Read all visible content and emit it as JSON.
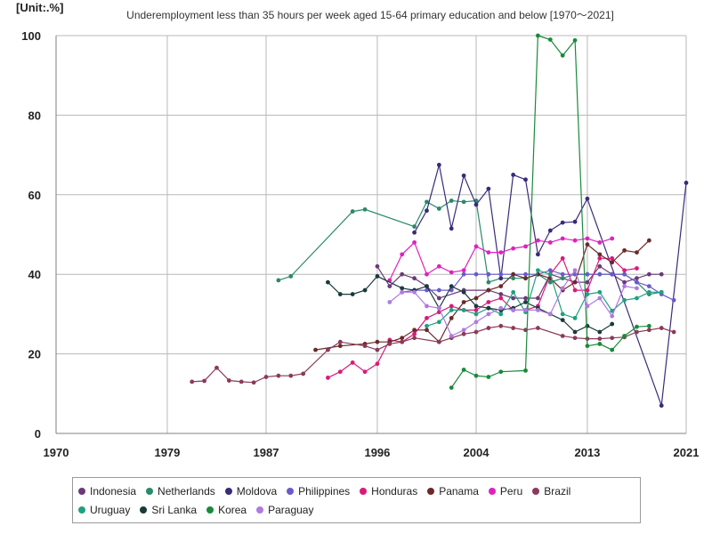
{
  "unit_label": "[Unit:.%]",
  "chart_data": {
    "type": "line",
    "title": "Underemployment less than 35 hours per week aged 15-64 primary education and below [1970～2021]",
    "xlabel": "",
    "ylabel": "",
    "xlim": [
      1970,
      2021
    ],
    "ylim": [
      0,
      100
    ],
    "x_ticks": [
      1970,
      1979,
      1987,
      1996,
      2004,
      2013,
      2021
    ],
    "y_ticks": [
      0,
      20,
      40,
      60,
      80,
      100
    ],
    "grid": true,
    "legend_position": "bottom",
    "series": [
      {
        "name": "Indonesia",
        "color": "#6b3a7a",
        "points": [
          [
            1996,
            42
          ],
          [
            1997,
            37
          ],
          [
            1998,
            40
          ],
          [
            1999,
            39
          ],
          [
            2000,
            37
          ],
          [
            2001,
            34
          ],
          [
            2003,
            36
          ],
          [
            2005,
            36
          ],
          [
            2006,
            35
          ],
          [
            2007,
            34
          ],
          [
            2008,
            34
          ],
          [
            2009,
            34
          ],
          [
            2010,
            40
          ],
          [
            2012,
            38
          ],
          [
            2013,
            38
          ],
          [
            2014,
            42
          ],
          [
            2015,
            40
          ],
          [
            2016,
            38
          ],
          [
            2017,
            39
          ],
          [
            2018,
            40
          ],
          [
            2019,
            40
          ]
        ]
      },
      {
        "name": "Netherlands",
        "color": "#2a8a6a",
        "points": [
          [
            1988,
            38.5
          ],
          [
            1989,
            39.5
          ],
          [
            1994,
            55.8
          ],
          [
            1995,
            56.3
          ],
          [
            1999,
            52
          ],
          [
            2000,
            58.2
          ],
          [
            2001,
            56.5
          ],
          [
            2002,
            58.5
          ],
          [
            2003,
            58.2
          ],
          [
            2004,
            58.5
          ],
          [
            2005,
            38
          ],
          [
            2006,
            39
          ],
          [
            2007,
            39
          ],
          [
            2008,
            39
          ],
          [
            2009,
            40
          ],
          [
            2010,
            38
          ],
          [
            2011,
            39
          ],
          [
            2012,
            40
          ],
          [
            2013,
            40
          ],
          [
            2014,
            40
          ],
          [
            2015,
            40
          ],
          [
            2016,
            40
          ],
          [
            2017,
            38
          ],
          [
            2018,
            35
          ],
          [
            2019,
            35.5
          ]
        ]
      },
      {
        "name": "Moldova",
        "color": "#3a2a7a",
        "points": [
          [
            1999,
            50.5
          ],
          [
            2000,
            56
          ],
          [
            2001,
            67.5
          ],
          [
            2002,
            51.5
          ],
          [
            2003,
            64.8
          ],
          [
            2004,
            57.5
          ],
          [
            2005,
            61.5
          ],
          [
            2006,
            39
          ],
          [
            2007,
            65
          ],
          [
            2008,
            63.8
          ],
          [
            2009,
            45
          ],
          [
            2010,
            51
          ],
          [
            2011,
            53
          ],
          [
            2012,
            53.2
          ],
          [
            2013,
            59
          ],
          [
            2019,
            7
          ],
          [
            2021,
            63
          ]
        ]
      },
      {
        "name": "Philippines",
        "color": "#6a5acd",
        "points": [
          [
            1998,
            35.5
          ],
          [
            1999,
            36
          ],
          [
            2000,
            36
          ],
          [
            2001,
            36
          ],
          [
            2002,
            36
          ],
          [
            2003,
            40
          ],
          [
            2004,
            40
          ],
          [
            2005,
            40
          ],
          [
            2006,
            40
          ],
          [
            2007,
            40
          ],
          [
            2008,
            40
          ],
          [
            2009,
            40
          ],
          [
            2010,
            41
          ],
          [
            2011,
            40
          ],
          [
            2012,
            40
          ],
          [
            2013,
            40
          ],
          [
            2014,
            40
          ],
          [
            2015,
            40
          ],
          [
            2016,
            40
          ],
          [
            2017,
            38
          ],
          [
            2018,
            37
          ],
          [
            2019,
            35
          ],
          [
            2020,
            33.5
          ]
        ]
      },
      {
        "name": "Honduras",
        "color": "#d81b7a",
        "points": [
          [
            1992,
            14
          ],
          [
            1993,
            15.5
          ],
          [
            1994,
            17.8
          ],
          [
            1995,
            15.5
          ],
          [
            1996,
            17.5
          ],
          [
            1997,
            23.5
          ],
          [
            1998,
            23
          ],
          [
            1999,
            25
          ],
          [
            2000,
            29
          ],
          [
            2001,
            30.5
          ],
          [
            2002,
            32
          ],
          [
            2003,
            31
          ],
          [
            2004,
            31
          ],
          [
            2005,
            33
          ],
          [
            2006,
            34
          ],
          [
            2007,
            31
          ],
          [
            2008,
            31
          ],
          [
            2009,
            32
          ],
          [
            2010,
            40
          ],
          [
            2011,
            44
          ],
          [
            2012,
            36
          ],
          [
            2013,
            36
          ],
          [
            2014,
            44
          ],
          [
            2015,
            44
          ],
          [
            2016,
            41
          ],
          [
            2017,
            41.5
          ]
        ]
      },
      {
        "name": "Panama",
        "color": "#6a2a2a",
        "points": [
          [
            1991,
            21
          ],
          [
            1993,
            22
          ],
          [
            1995,
            22.5
          ],
          [
            1996,
            23
          ],
          [
            1997,
            23
          ],
          [
            1998,
            24
          ],
          [
            1999,
            26
          ],
          [
            2000,
            26
          ],
          [
            2001,
            23
          ],
          [
            2002,
            29
          ],
          [
            2003,
            33
          ],
          [
            2004,
            34
          ],
          [
            2005,
            36
          ],
          [
            2006,
            37
          ],
          [
            2007,
            40
          ],
          [
            2008,
            39
          ],
          [
            2009,
            40
          ],
          [
            2010,
            39
          ],
          [
            2011,
            36
          ],
          [
            2012,
            38
          ],
          [
            2013,
            47.5
          ],
          [
            2014,
            45
          ],
          [
            2015,
            43
          ],
          [
            2016,
            46
          ],
          [
            2017,
            45.5
          ],
          [
            2018,
            48.5
          ]
        ]
      },
      {
        "name": "Peru",
        "color": "#e020c0",
        "points": [
          [
            1997,
            38.5
          ],
          [
            1998,
            45
          ],
          [
            1999,
            48
          ],
          [
            2000,
            40
          ],
          [
            2001,
            42
          ],
          [
            2002,
            40.5
          ],
          [
            2003,
            41
          ],
          [
            2004,
            47
          ],
          [
            2005,
            45.5
          ],
          [
            2006,
            45.5
          ],
          [
            2007,
            46.5
          ],
          [
            2008,
            47
          ],
          [
            2009,
            48.5
          ],
          [
            2010,
            48
          ],
          [
            2011,
            49
          ],
          [
            2012,
            48.5
          ],
          [
            2013,
            49
          ],
          [
            2014,
            48
          ],
          [
            2015,
            49
          ]
        ]
      },
      {
        "name": "Brazil",
        "color": "#8a3a5a",
        "points": [
          [
            1981,
            13
          ],
          [
            1982,
            13.2
          ],
          [
            1983,
            16.5
          ],
          [
            1984,
            13.3
          ],
          [
            1985,
            13
          ],
          [
            1986,
            12.8
          ],
          [
            1987,
            14.2
          ],
          [
            1988,
            14.5
          ],
          [
            1989,
            14.5
          ],
          [
            1990,
            15
          ],
          [
            1992,
            21
          ],
          [
            1993,
            23
          ],
          [
            1995,
            22
          ],
          [
            1996,
            21
          ],
          [
            1997,
            22.5
          ],
          [
            1998,
            23
          ],
          [
            1999,
            24
          ],
          [
            2001,
            23
          ],
          [
            2002,
            24
          ],
          [
            2003,
            25
          ],
          [
            2004,
            25.5
          ],
          [
            2005,
            26.5
          ],
          [
            2006,
            27
          ],
          [
            2007,
            26.5
          ],
          [
            2008,
            26
          ],
          [
            2009,
            26.5
          ],
          [
            2011,
            24.5
          ],
          [
            2012,
            24
          ],
          [
            2013,
            23.8
          ],
          [
            2014,
            23.8
          ],
          [
            2015,
            24
          ],
          [
            2016,
            24.2
          ],
          [
            2017,
            25.5
          ],
          [
            2018,
            26
          ],
          [
            2019,
            26.5
          ],
          [
            2020,
            25.5
          ]
        ]
      },
      {
        "name": "Uruguay",
        "color": "#20a080",
        "points": [
          [
            2000,
            27
          ],
          [
            2001,
            28
          ],
          [
            2002,
            31
          ],
          [
            2003,
            31
          ],
          [
            2004,
            30
          ],
          [
            2005,
            31.5
          ],
          [
            2006,
            30
          ],
          [
            2007,
            35.5
          ],
          [
            2008,
            30.5
          ],
          [
            2009,
            41
          ],
          [
            2010,
            40
          ],
          [
            2011,
            30
          ],
          [
            2012,
            29
          ],
          [
            2013,
            35
          ],
          [
            2014,
            35.5
          ],
          [
            2015,
            30.8
          ],
          [
            2016,
            33.5
          ],
          [
            2017,
            34
          ],
          [
            2018,
            35.5
          ],
          [
            2019,
            35.5
          ]
        ]
      },
      {
        "name": "Sri Lanka",
        "color": "#1a3a3a",
        "points": [
          [
            1992,
            38
          ],
          [
            1993,
            35
          ],
          [
            1994,
            35
          ],
          [
            1995,
            36
          ],
          [
            1996,
            39.5
          ],
          [
            1998,
            36.5
          ],
          [
            1999,
            36
          ],
          [
            2000,
            37
          ],
          [
            2001,
            31.5
          ],
          [
            2002,
            37
          ],
          [
            2003,
            35.5
          ],
          [
            2004,
            32
          ],
          [
            2005,
            31.5
          ],
          [
            2006,
            31
          ],
          [
            2007,
            31.5
          ],
          [
            2008,
            33
          ],
          [
            2009,
            31.5
          ],
          [
            2010,
            30
          ],
          [
            2011,
            28.5
          ],
          [
            2012,
            25.5
          ],
          [
            2013,
            27
          ],
          [
            2014,
            25.5
          ],
          [
            2015,
            27.5
          ]
        ]
      },
      {
        "name": "Korea",
        "color": "#1a8a3a",
        "points": [
          [
            2002,
            11.5
          ],
          [
            2003,
            16
          ],
          [
            2004,
            14.5
          ],
          [
            2005,
            14.2
          ],
          [
            2006,
            15.5
          ],
          [
            2008,
            15.8
          ],
          [
            2009,
            100
          ],
          [
            2010,
            99
          ],
          [
            2011,
            95
          ],
          [
            2012,
            98.8
          ],
          [
            2013,
            22
          ],
          [
            2014,
            22.5
          ],
          [
            2015,
            21
          ],
          [
            2016,
            24.5
          ],
          [
            2017,
            26.8
          ],
          [
            2018,
            27
          ]
        ]
      },
      {
        "name": "Paraguay",
        "color": "#b07ae0",
        "points": [
          [
            1997,
            33
          ],
          [
            1998,
            35.5
          ],
          [
            1999,
            35.5
          ],
          [
            2000,
            32
          ],
          [
            2001,
            31.5
          ],
          [
            2002,
            24.5
          ],
          [
            2003,
            26
          ],
          [
            2004,
            28
          ],
          [
            2005,
            30
          ],
          [
            2006,
            31.5
          ],
          [
            2007,
            31
          ],
          [
            2008,
            31
          ],
          [
            2009,
            31
          ],
          [
            2010,
            30
          ],
          [
            2011,
            36.5
          ],
          [
            2012,
            41
          ],
          [
            2013,
            32
          ],
          [
            2014,
            34
          ],
          [
            2015,
            29.5
          ],
          [
            2016,
            37
          ],
          [
            2017,
            36.5
          ]
        ]
      }
    ]
  }
}
